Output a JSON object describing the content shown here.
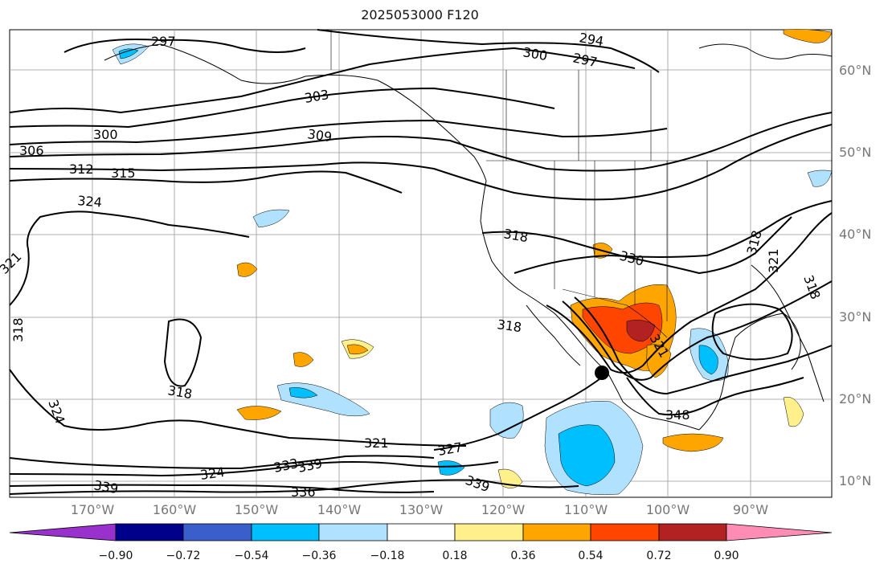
{
  "title": "2025053000 F120",
  "lat_labels": [
    "60°N",
    "50°N",
    "40°N",
    "30°N",
    "20°N",
    "10°N"
  ],
  "lon_labels": [
    "170°W",
    "160°W",
    "150°W",
    "140°W",
    "130°W",
    "120°W",
    "110°W",
    "100°W",
    "90°W"
  ],
  "contour_labels": [
    "297",
    "294",
    "300",
    "297",
    "303",
    "300",
    "306",
    "309",
    "312",
    "315",
    "324",
    "321",
    "318",
    "318",
    "330",
    "318",
    "318",
    "321",
    "324",
    "318",
    "321",
    "327",
    "333",
    "339",
    "339",
    "324",
    "336",
    "339",
    "348",
    "321",
    "318"
  ],
  "colorbar": {
    "ticks": [
      "−0.90",
      "−0.72",
      "−0.54",
      "−0.36",
      "−0.18",
      "0.18",
      "0.36",
      "0.54",
      "0.72",
      "0.90"
    ],
    "colors": [
      "#9932cc",
      "#00008b",
      "#3a5fcd",
      "#00bfff",
      "#b0e2ff",
      "#ffffff",
      "#fff08c",
      "#ffa500",
      "#ff4500",
      "#b22222",
      "#ff8cb4"
    ]
  },
  "colors": {
    "strong_neg": "#00bfff",
    "weak_neg": "#b0e2ff",
    "weak_pos": "#fff08c",
    "mid_pos": "#ffa500",
    "strong_pos": "#ff4500",
    "max_pos": "#b22222"
  }
}
